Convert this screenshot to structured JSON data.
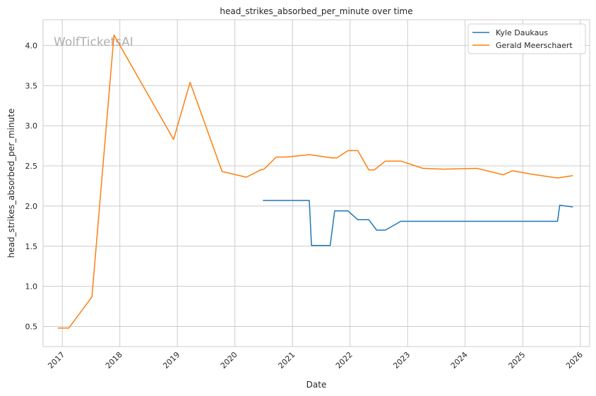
{
  "watermark": "WolfTicketsAI",
  "chart_data": {
    "type": "line",
    "title": "head_strikes_absorbed_per_minute over time",
    "xlabel": "Date",
    "ylabel": "head_strikes_absorbed_per_minute",
    "xlim": [
      "2016-09-01",
      "2026-03-01"
    ],
    "ylim": [
      0.25,
      4.32
    ],
    "x_ticks": [
      "2017",
      "2018",
      "2019",
      "2020",
      "2021",
      "2022",
      "2023",
      "2024",
      "2025",
      "2026"
    ],
    "y_ticks": [
      0.5,
      1.0,
      1.5,
      2.0,
      2.5,
      3.0,
      3.5,
      4.0
    ],
    "y_tick_labels": [
      "0.5",
      "1.0",
      "1.5",
      "2.0",
      "2.5",
      "3.0",
      "3.5",
      "4.0"
    ],
    "grid": true,
    "legend_position": "top-right",
    "series": [
      {
        "name": "Kyle Daukaus",
        "color": "#1f77b4",
        "points": [
          [
            "2020-06-27",
            2.07
          ],
          [
            "2021-04-17",
            2.07
          ],
          [
            "2021-05-01",
            1.51
          ],
          [
            "2021-08-28",
            1.51
          ],
          [
            "2021-09-25",
            1.94
          ],
          [
            "2021-12-18",
            1.94
          ],
          [
            "2022-02-19",
            1.83
          ],
          [
            "2022-04-30",
            1.83
          ],
          [
            "2022-06-18",
            1.7
          ],
          [
            "2022-08-13",
            1.7
          ],
          [
            "2022-11-19",
            1.81
          ],
          [
            "2025-08-09",
            1.81
          ],
          [
            "2025-08-23",
            2.01
          ],
          [
            "2025-11-15",
            1.99
          ]
        ]
      },
      {
        "name": "Gerald Meerschaert",
        "color": "#ff7f0e",
        "points": [
          [
            "2016-12-03",
            0.48
          ],
          [
            "2017-02-11",
            0.48
          ],
          [
            "2017-07-08",
            0.87
          ],
          [
            "2017-11-25",
            4.13
          ],
          [
            "2018-12-08",
            2.83
          ],
          [
            "2019-03-23",
            3.54
          ],
          [
            "2019-10-12",
            2.43
          ],
          [
            "2020-03-14",
            2.36
          ],
          [
            "2020-06-13",
            2.45
          ],
          [
            "2020-07-04",
            2.46
          ],
          [
            "2020-09-19",
            2.61
          ],
          [
            "2020-11-21",
            2.61
          ],
          [
            "2021-04-17",
            2.64
          ],
          [
            "2021-09-11",
            2.6
          ],
          [
            "2021-10-09",
            2.6
          ],
          [
            "2021-12-18",
            2.69
          ],
          [
            "2022-02-19",
            2.69
          ],
          [
            "2022-04-30",
            2.45
          ],
          [
            "2022-06-04",
            2.45
          ],
          [
            "2022-08-13",
            2.56
          ],
          [
            "2022-11-19",
            2.56
          ],
          [
            "2023-04-08",
            2.47
          ],
          [
            "2023-08-19",
            2.46
          ],
          [
            "2024-03-16",
            2.47
          ],
          [
            "2024-08-31",
            2.39
          ],
          [
            "2024-10-26",
            2.44
          ],
          [
            "2025-03-22",
            2.39
          ],
          [
            "2025-08-09",
            2.35
          ],
          [
            "2025-11-15",
            2.38
          ]
        ]
      }
    ]
  }
}
